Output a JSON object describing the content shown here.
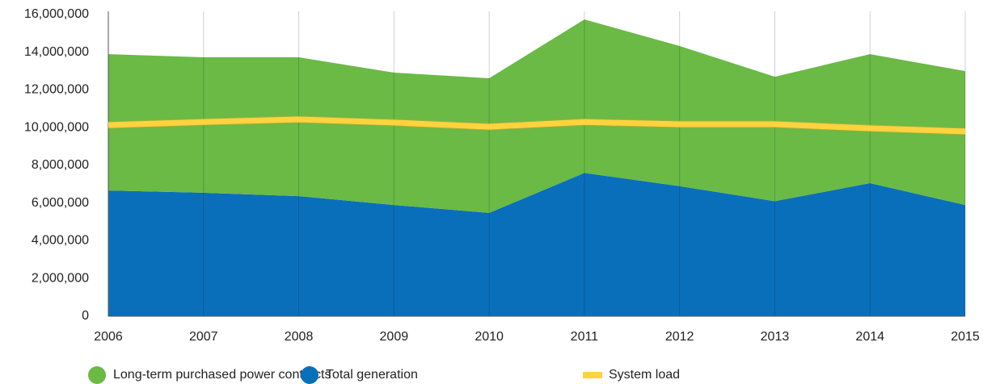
{
  "chart_data": {
    "type": "stacked_area",
    "categories": [
      "2006",
      "2007",
      "2008",
      "2009",
      "2010",
      "2011",
      "2012",
      "2013",
      "2014",
      "2015"
    ],
    "series": [
      {
        "name": "Long-term purchased power contracts",
        "color": "#6aba45",
        "kind": "area",
        "values": [
          7230000,
          7180000,
          7360000,
          7020000,
          7140000,
          8140000,
          7430000,
          6600000,
          6840000,
          7100000
        ]
      },
      {
        "name": "Total generation",
        "color": "#0a6fba",
        "kind": "area",
        "values": [
          6670000,
          6550000,
          6370000,
          5900000,
          5480000,
          7600000,
          6900000,
          6100000,
          7060000,
          5900000
        ]
      },
      {
        "name": "System load",
        "color": "#ffd23f",
        "kind": "line",
        "values": [
          10140000,
          10300000,
          10440000,
          10270000,
          10050000,
          10300000,
          10180000,
          10180000,
          9970000,
          9800000
        ]
      }
    ],
    "ylim": [
      0,
      16000000
    ],
    "yticks": [
      0,
      {
        "value": 2000000,
        "label": "2,000,000"
      },
      {
        "value": 4000000,
        "label": "4,000,000"
      },
      {
        "value": 6000000,
        "label": "6,000,000"
      },
      {
        "value": 8000000,
        "label": "8,000,000"
      },
      {
        "value": 10000000,
        "label": "10,000,000"
      },
      {
        "value": 12000000,
        "label": "12,000,000"
      },
      {
        "value": 14000000,
        "label": "14,000,000"
      },
      {
        "value": 16000000,
        "label": "16,000,000"
      }
    ],
    "grid": true
  }
}
